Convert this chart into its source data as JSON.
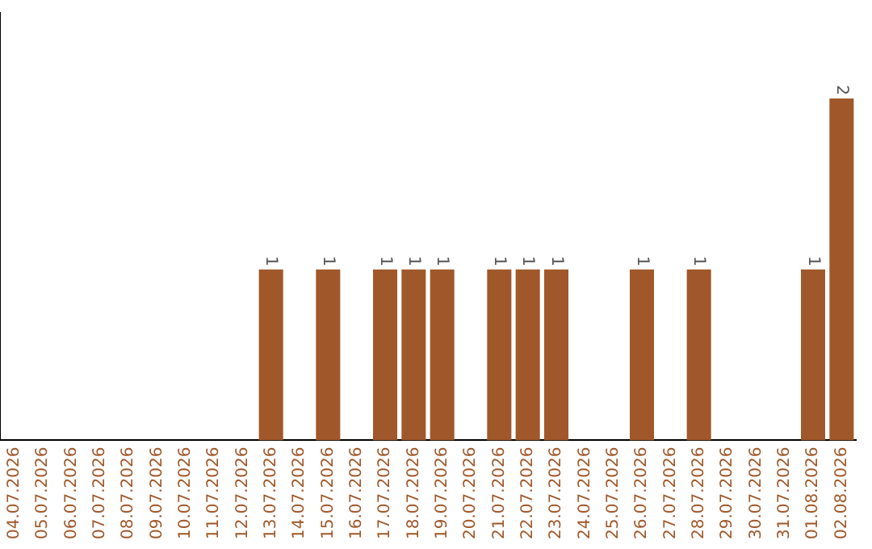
{
  "chart_data": {
    "type": "bar",
    "categories": [
      "04.07.2026",
      "05.07.2026",
      "06.07.2026",
      "07.07.2026",
      "08.07.2026",
      "09.07.2026",
      "10.07.2026",
      "11.07.2026",
      "12.07.2026",
      "13.07.2026",
      "14.07.2026",
      "15.07.2026",
      "16.07.2026",
      "17.07.2026",
      "18.07.2026",
      "19.07.2026",
      "20.07.2026",
      "21.07.2026",
      "22.07.2026",
      "23.07.2026",
      "24.07.2026",
      "25.07.2026",
      "26.07.2026",
      "27.07.2026",
      "28.07.2026",
      "29.07.2026",
      "30.07.2026",
      "31.07.2026",
      "01.08.2026",
      "02.08.2026"
    ],
    "values": [
      0,
      0,
      0,
      0,
      0,
      0,
      0,
      0,
      0,
      1,
      0,
      1,
      0,
      1,
      1,
      1,
      0,
      1,
      1,
      1,
      0,
      0,
      1,
      0,
      1,
      0,
      0,
      0,
      1,
      2
    ],
    "value_labels": [
      null,
      null,
      null,
      null,
      null,
      null,
      null,
      null,
      null,
      "1",
      null,
      "1",
      null,
      "1",
      "1",
      "1",
      null,
      "1",
      "1",
      "1",
      null,
      null,
      "1",
      null,
      "1",
      null,
      null,
      null,
      "1",
      "2"
    ],
    "color": "#a0582a",
    "tick_labels": "x",
    "grid": false,
    "legend": false
  }
}
